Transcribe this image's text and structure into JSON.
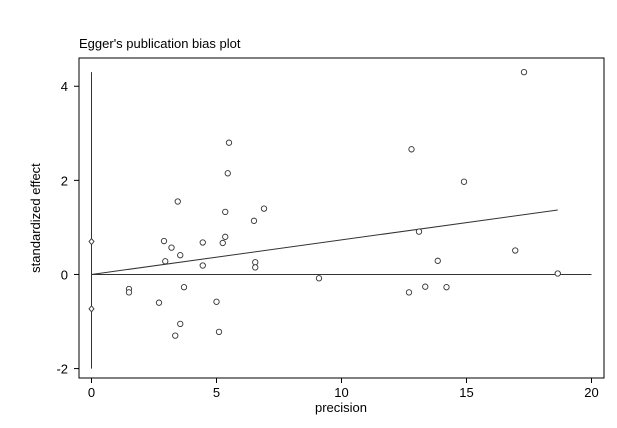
{
  "chart_data": {
    "type": "scatter",
    "title": "Egger's publication bias plot",
    "xlabel": "precision",
    "ylabel": "standardized effect",
    "xlim": [
      -0.5,
      20.5
    ],
    "ylim": [
      -2.2,
      4.6
    ],
    "xticks": [
      0,
      5,
      10,
      15,
      20
    ],
    "xtick_labels": [
      "0",
      "5",
      "10",
      "15",
      "20"
    ],
    "yticks": [
      -2,
      0,
      2,
      4
    ],
    "ytick_labels": [
      "-2",
      "0",
      "2",
      "4"
    ],
    "grid": false,
    "points": [
      {
        "x": 0.0,
        "y": 0.7,
        "marker": "diamond"
      },
      {
        "x": 0.0,
        "y": -0.73,
        "marker": "diamond"
      },
      {
        "x": 1.5,
        "y": -0.31
      },
      {
        "x": 1.5,
        "y": -0.38
      },
      {
        "x": 2.7,
        "y": -0.6
      },
      {
        "x": 2.9,
        "y": 0.71
      },
      {
        "x": 2.95,
        "y": 0.28
      },
      {
        "x": 3.2,
        "y": 0.57
      },
      {
        "x": 3.35,
        "y": -1.3
      },
      {
        "x": 3.45,
        "y": 1.55
      },
      {
        "x": 3.55,
        "y": -1.05
      },
      {
        "x": 3.55,
        "y": 0.41
      },
      {
        "x": 3.7,
        "y": -0.27
      },
      {
        "x": 4.45,
        "y": 0.68
      },
      {
        "x": 4.45,
        "y": 0.19
      },
      {
        "x": 5.0,
        "y": -0.58
      },
      {
        "x": 5.1,
        "y": -1.22
      },
      {
        "x": 5.25,
        "y": 0.67
      },
      {
        "x": 5.35,
        "y": 1.33
      },
      {
        "x": 5.35,
        "y": 0.8
      },
      {
        "x": 5.45,
        "y": 2.15
      },
      {
        "x": 5.5,
        "y": 2.8
      },
      {
        "x": 6.5,
        "y": 1.14
      },
      {
        "x": 6.55,
        "y": 0.26
      },
      {
        "x": 6.55,
        "y": 0.15
      },
      {
        "x": 6.9,
        "y": 1.4
      },
      {
        "x": 9.1,
        "y": -0.08
      },
      {
        "x": 12.7,
        "y": -0.38
      },
      {
        "x": 12.8,
        "y": 2.66
      },
      {
        "x": 13.1,
        "y": 0.91
      },
      {
        "x": 13.35,
        "y": -0.26
      },
      {
        "x": 13.85,
        "y": 0.29
      },
      {
        "x": 14.2,
        "y": -0.27
      },
      {
        "x": 14.9,
        "y": 1.97
      },
      {
        "x": 16.95,
        "y": 0.51
      },
      {
        "x": 17.3,
        "y": 4.3
      },
      {
        "x": 18.65,
        "y": 0.02
      }
    ],
    "regression_line": {
      "x1": 0,
      "y1": 0,
      "x2": 18.65,
      "y2": 1.37
    },
    "reference_line_y": 0,
    "reference_line_x_range": [
      0,
      20
    ],
    "ci_segment": {
      "x": 0,
      "y1": -2.0,
      "y2": 4.3
    }
  }
}
